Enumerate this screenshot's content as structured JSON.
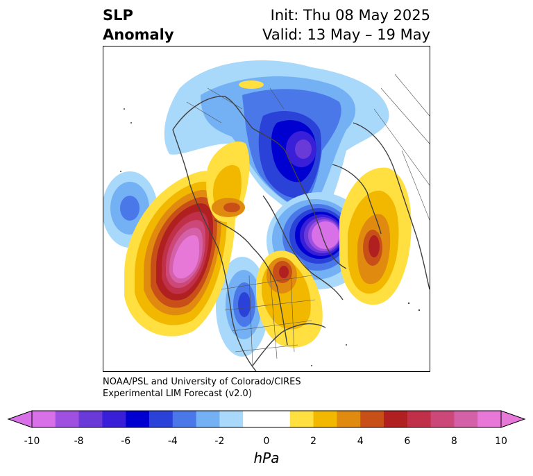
{
  "title": {
    "left_line1": "SLP",
    "left_line2": "Anomaly",
    "right_line1": "Init: Thu 08 May 2025",
    "right_line2": "Valid: 13 May – 19 May"
  },
  "credit": {
    "line1": "NOAA/PSL and University of Colorado/CIRES",
    "line2": "Experimental LIM Forecast (v2.0)"
  },
  "colorbar": {
    "unit": "hPa",
    "tick_labels": [
      "-10",
      "-8",
      "-6",
      "-4",
      "-2",
      "0",
      "2",
      "4",
      "6",
      "8",
      "10"
    ],
    "tick_values": [
      -10,
      -8,
      -6,
      -4,
      -2,
      0,
      2,
      4,
      6,
      8,
      10
    ],
    "range": [
      -10,
      10
    ],
    "colors": [
      "#d870e8",
      "#a050e0",
      "#6a3ad8",
      "#3a1fd8",
      "#0000d0",
      "#2a42d8",
      "#4a78e8",
      "#74b0f4",
      "#a8d8fa",
      "#ffffff",
      "#ffffff",
      "#ffe040",
      "#f2b800",
      "#e08a10",
      "#c85018",
      "#b02020",
      "#c03048",
      "#cc4878",
      "#d460a8",
      "#e878d8"
    ]
  },
  "map": {
    "projection": "north-polar-stereographic",
    "anomalies": [
      {
        "region": "north pole",
        "sign": "negative",
        "peak_hpa": -7
      },
      {
        "region": "north atlantic",
        "sign": "negative",
        "peak_hpa": -10
      },
      {
        "region": "north pacific",
        "sign": "positive",
        "peak_hpa": 10
      },
      {
        "region": "eastern siberia",
        "sign": "positive",
        "peak_hpa": 6
      },
      {
        "region": "eastern asia",
        "sign": "positive",
        "peak_hpa": 6
      },
      {
        "region": "europe",
        "sign": "positive",
        "peak_hpa": 7
      },
      {
        "region": "central north america",
        "sign": "negative",
        "peak_hpa": -5
      },
      {
        "region": "far north pacific",
        "sign": "negative",
        "peak_hpa": -4
      }
    ]
  }
}
